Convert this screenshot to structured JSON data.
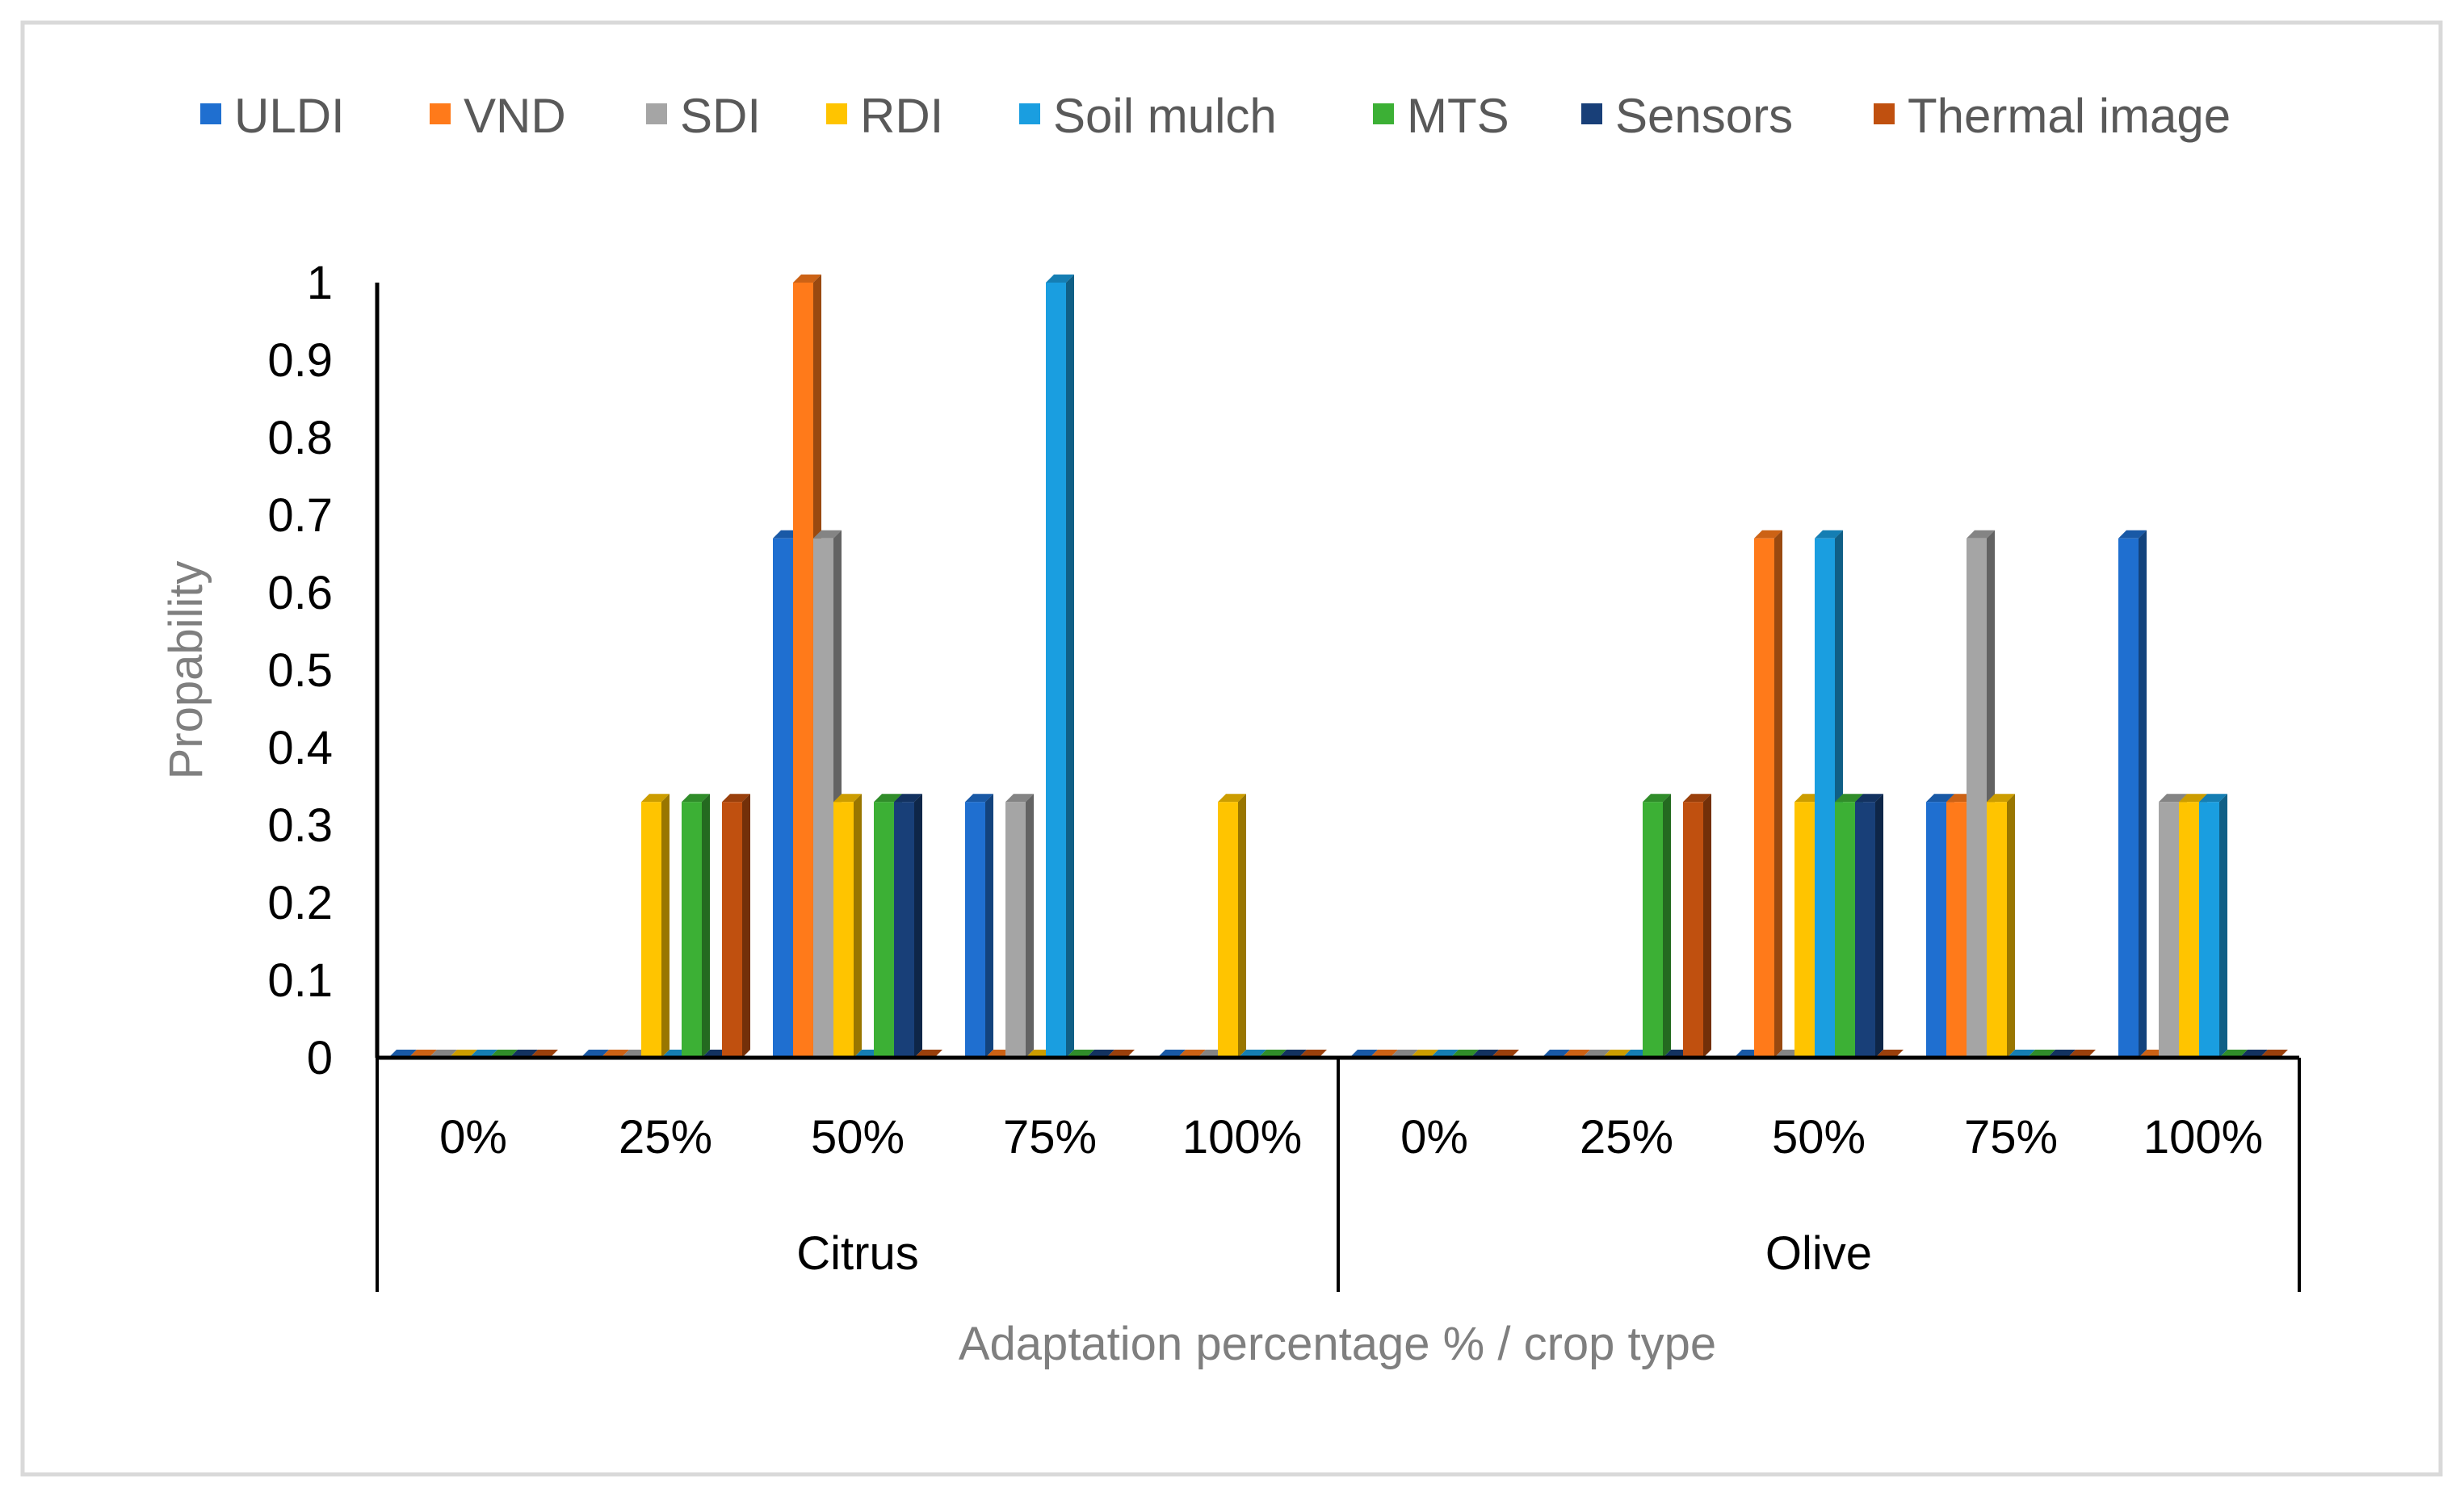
{
  "chart_data": {
    "type": "bar",
    "title": "",
    "xlabel": "Adaptation percentage % / crop type",
    "ylabel": "Propability",
    "ylim": [
      0,
      1
    ],
    "yticks": [
      "0",
      "0.1",
      "0.2",
      "0.3",
      "0.4",
      "0.5",
      "0.6",
      "0.7",
      "0.8",
      "0.9",
      "1"
    ],
    "groups": [
      "Citrus",
      "Olive"
    ],
    "categories": [
      "0%",
      "25%",
      "50%",
      "75%",
      "100%",
      "0%",
      "25%",
      "50%",
      "75%",
      "100%"
    ],
    "legend_position": "top",
    "grid": false,
    "series": [
      {
        "name": "ULDI",
        "color": "#1f6fd0",
        "values": [
          0,
          0,
          0.67,
          0.33,
          0,
          0,
          0,
          0,
          0.33,
          0.67
        ]
      },
      {
        "name": "VND",
        "color": "#ff7a1a",
        "values": [
          0,
          0,
          1,
          0,
          0,
          0,
          0,
          0.67,
          0.33,
          0
        ]
      },
      {
        "name": "SDI",
        "color": "#a5a5a5",
        "values": [
          0,
          0,
          0.67,
          0.33,
          0,
          0,
          0,
          0,
          0.67,
          0.33
        ]
      },
      {
        "name": "RDI",
        "color": "#ffc400",
        "values": [
          0,
          0.33,
          0.33,
          0,
          0.33,
          0,
          0,
          0.33,
          0.33,
          0.33
        ]
      },
      {
        "name": "Soil mulch",
        "color": "#1a9ee0",
        "values": [
          0,
          0,
          0,
          1,
          0,
          0,
          0,
          0.67,
          0,
          0.33
        ]
      },
      {
        "name": "MTS",
        "color": "#3cb035",
        "values": [
          0,
          0.33,
          0.33,
          0,
          0,
          0,
          0.33,
          0.33,
          0,
          0
        ]
      },
      {
        "name": "Sensors",
        "color": "#183f78",
        "values": [
          0,
          0,
          0.33,
          0,
          0,
          0,
          0,
          0.33,
          0,
          0
        ]
      },
      {
        "name": "Thermal image",
        "color": "#c0500f",
        "values": [
          0,
          0.33,
          0,
          0,
          0,
          0,
          0.33,
          0,
          0,
          0
        ]
      }
    ]
  }
}
